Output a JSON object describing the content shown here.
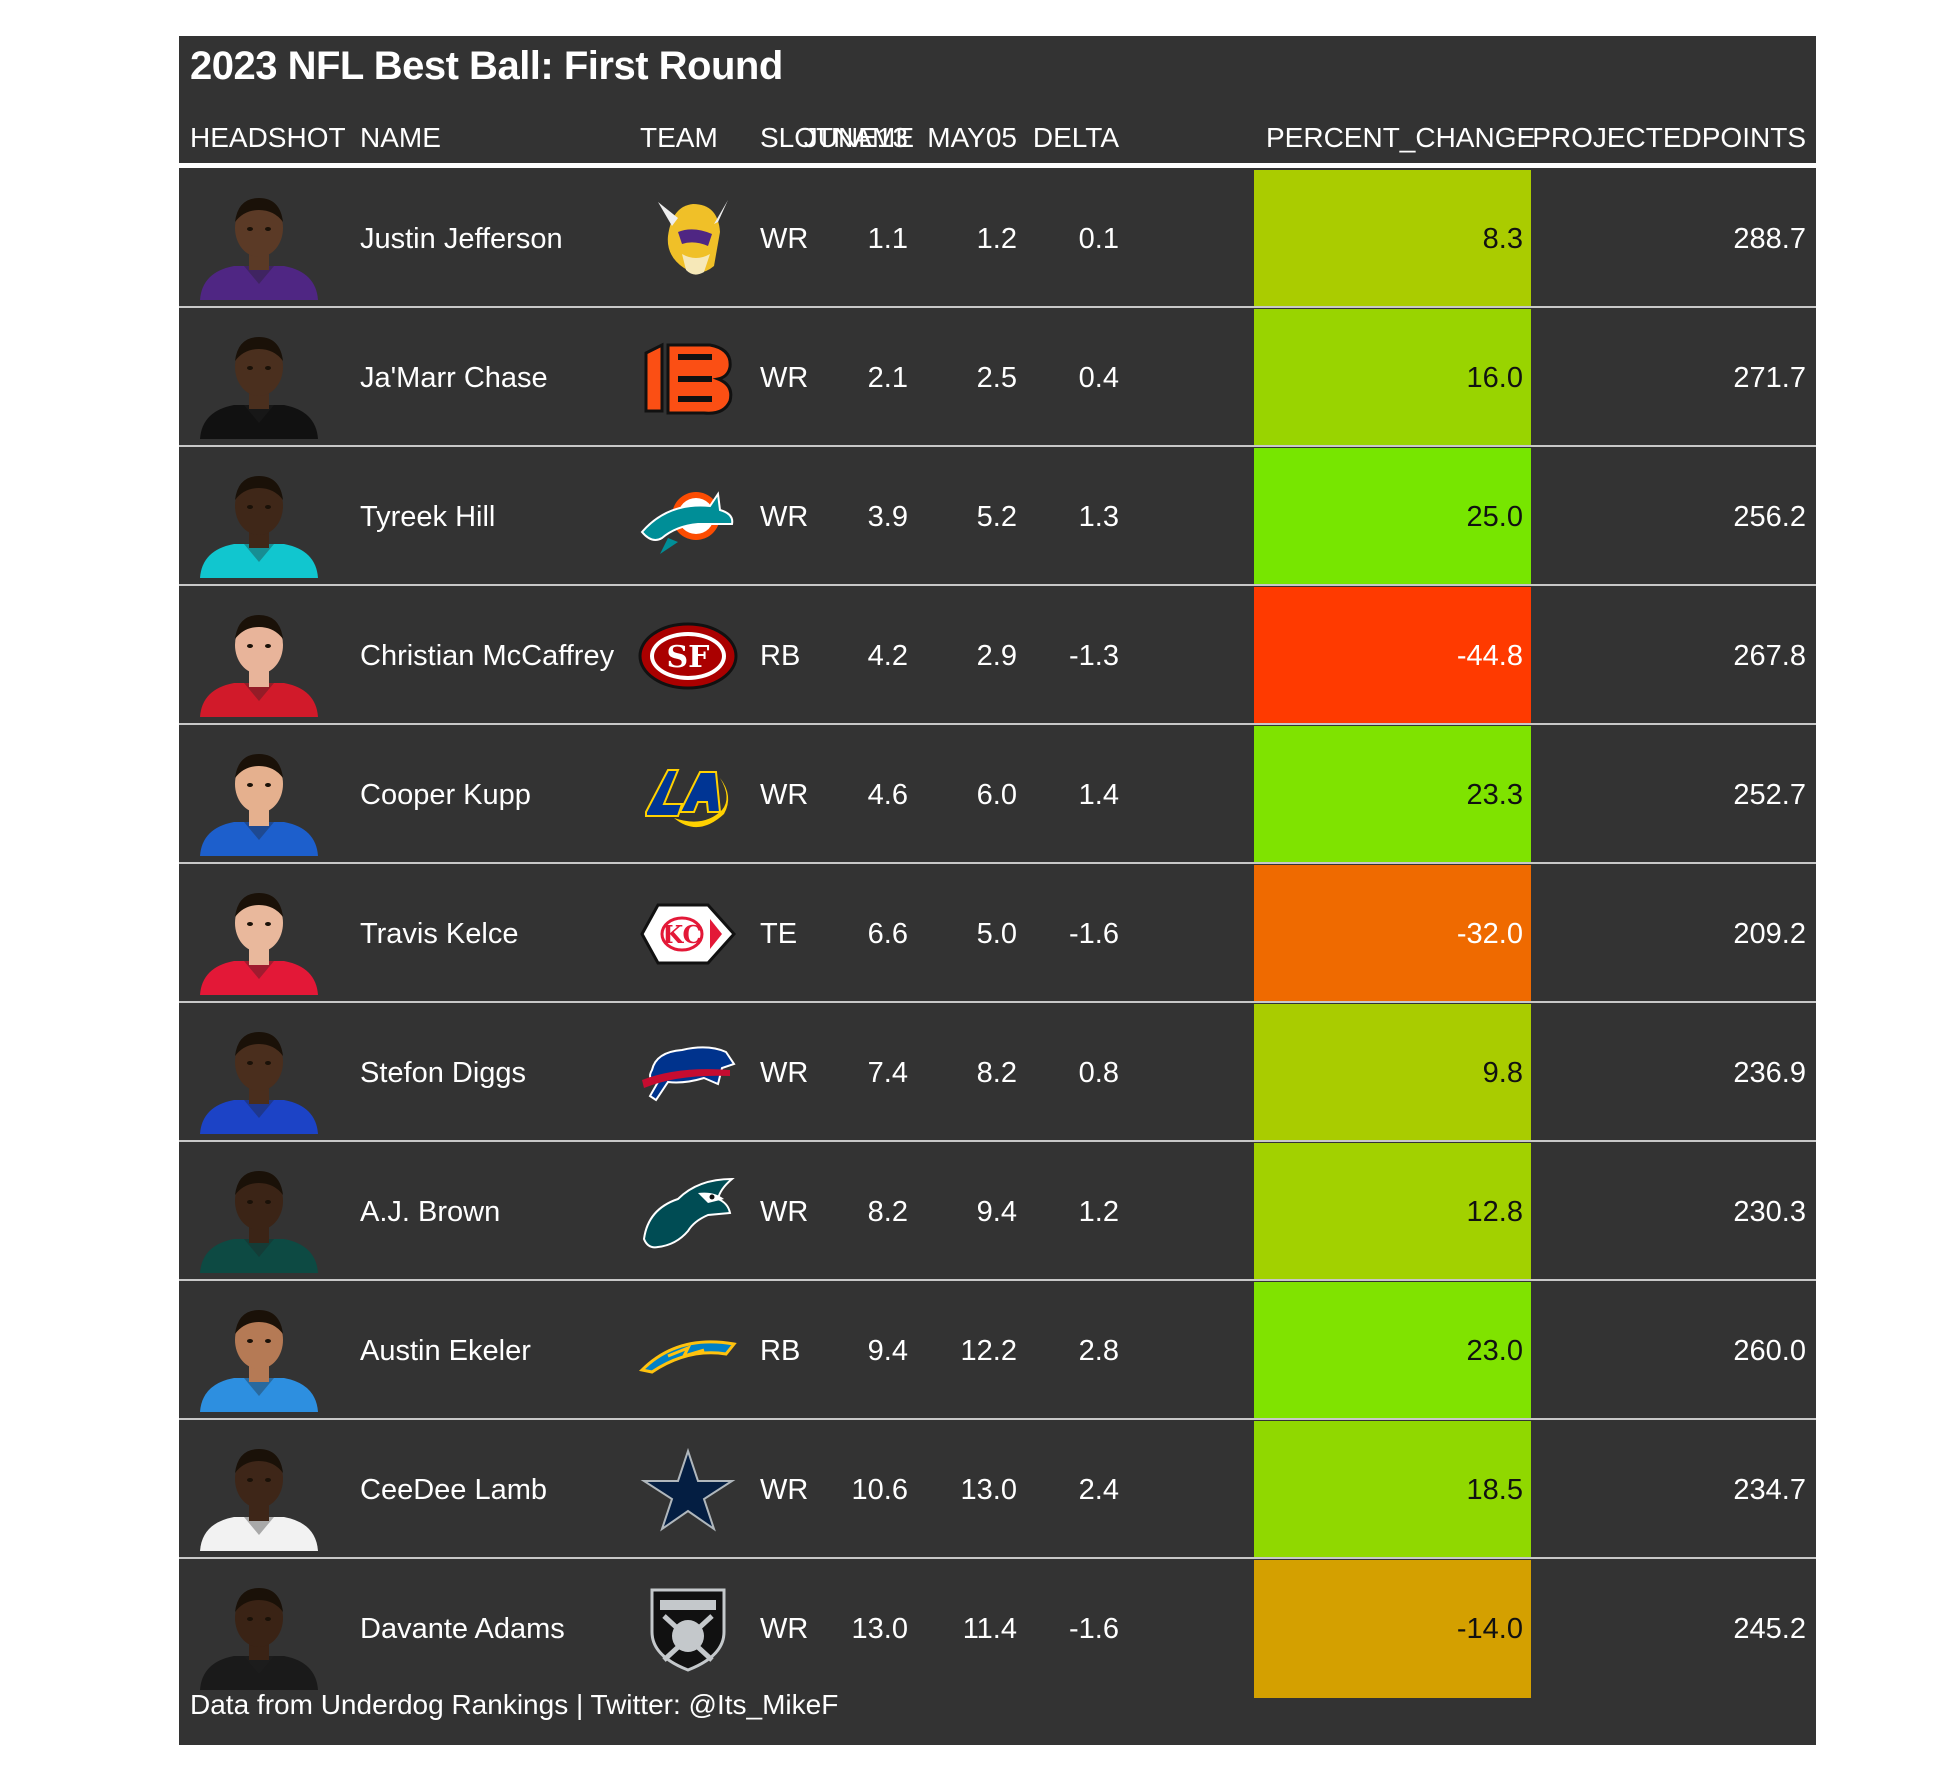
{
  "title": "2023 NFL Best Ball: First Round",
  "columns": [
    "HEADSHOT",
    "NAME",
    "TEAM",
    "SLOTNAME",
    "JUNE13",
    "MAY05",
    "DELTA",
    "PERCENT_CHANGE",
    "PROJECTEDPOINTS"
  ],
  "rows": [
    {
      "name": "Justin Jefferson",
      "team_icon": "vikings-logo-icon",
      "slot": "WR",
      "june13": "1.1",
      "may05": "1.2",
      "delta": "0.1",
      "pct": "8.3",
      "proj": "288.7",
      "pct_color": "#aacc00",
      "jersey": "#4f2683",
      "skin": "#5b3a26"
    },
    {
      "name": "Ja'Marr Chase",
      "team_icon": "bengals-logo-icon",
      "slot": "WR",
      "june13": "2.1",
      "may05": "2.5",
      "delta": "0.4",
      "pct": "16.0",
      "proj": "271.7",
      "pct_color": "#99d400",
      "jersey": "#111111",
      "skin": "#4a2f1e"
    },
    {
      "name": "Tyreek Hill",
      "team_icon": "dolphins-logo-icon",
      "slot": "WR",
      "june13": "3.9",
      "may05": "5.2",
      "delta": "1.3",
      "pct": "25.0",
      "proj": "256.2",
      "pct_color": "#77e600",
      "jersey": "#11c6cf",
      "skin": "#3f2718"
    },
    {
      "name": "Christian McCaffrey",
      "team_icon": "49ers-logo-icon",
      "slot": "RB",
      "june13": "4.2",
      "may05": "2.9",
      "delta": "-1.3",
      "pct": "-44.8",
      "proj": "267.8",
      "pct_color": "#ff3a00",
      "jersey": "#d11a2a",
      "skin": "#e8b49a"
    },
    {
      "name": "Cooper Kupp",
      "team_icon": "rams-logo-icon",
      "slot": "WR",
      "june13": "4.6",
      "may05": "6.0",
      "delta": "1.4",
      "pct": "23.3",
      "proj": "252.7",
      "pct_color": "#7fe300",
      "jersey": "#1d5fcc",
      "skin": "#e5b08e"
    },
    {
      "name": "Travis Kelce",
      "team_icon": "chiefs-logo-icon",
      "slot": "TE",
      "june13": "6.6",
      "may05": "5.0",
      "delta": "-1.6",
      "pct": "-32.0",
      "proj": "209.2",
      "pct_color": "#ef6a00",
      "jersey": "#e31837",
      "skin": "#e9b89c"
    },
    {
      "name": "Stefon Diggs",
      "team_icon": "bills-logo-icon",
      "slot": "WR",
      "june13": "7.4",
      "may05": "8.2",
      "delta": "0.8",
      "pct": "9.8",
      "proj": "236.9",
      "pct_color": "#a9cc00",
      "jersey": "#1c43c6",
      "skin": "#4a2e1d"
    },
    {
      "name": "A.J. Brown",
      "team_icon": "eagles-logo-icon",
      "slot": "WR",
      "june13": "8.2",
      "may05": "9.4",
      "delta": "1.2",
      "pct": "12.8",
      "proj": "230.3",
      "pct_color": "#a2d100",
      "jersey": "#0d4a43",
      "skin": "#3b2416"
    },
    {
      "name": "Austin Ekeler",
      "team_icon": "chargers-logo-icon",
      "slot": "RB",
      "june13": "9.4",
      "may05": "12.2",
      "delta": "2.8",
      "pct": "23.0",
      "proj": "260.0",
      "pct_color": "#80e300",
      "jersey": "#2d8fe0",
      "skin": "#b57a55"
    },
    {
      "name": "CeeDee Lamb",
      "team_icon": "cowboys-logo-icon",
      "slot": "WR",
      "june13": "10.6",
      "may05": "13.0",
      "delta": "2.4",
      "pct": "18.5",
      "proj": "234.7",
      "pct_color": "#90d800",
      "jersey": "#f2f2f2",
      "skin": "#3e2618"
    },
    {
      "name": "Davante Adams",
      "team_icon": "raiders-logo-icon",
      "slot": "WR",
      "june13": "13.0",
      "may05": "11.4",
      "delta": "-1.6",
      "pct": "-14.0",
      "proj": "245.2",
      "pct_color": "#d4a000",
      "jersey": "#1a1a1a",
      "skin": "#3a2315"
    }
  ],
  "footer": "Data from Underdog Rankings | Twitter: @Its_MikeF"
}
